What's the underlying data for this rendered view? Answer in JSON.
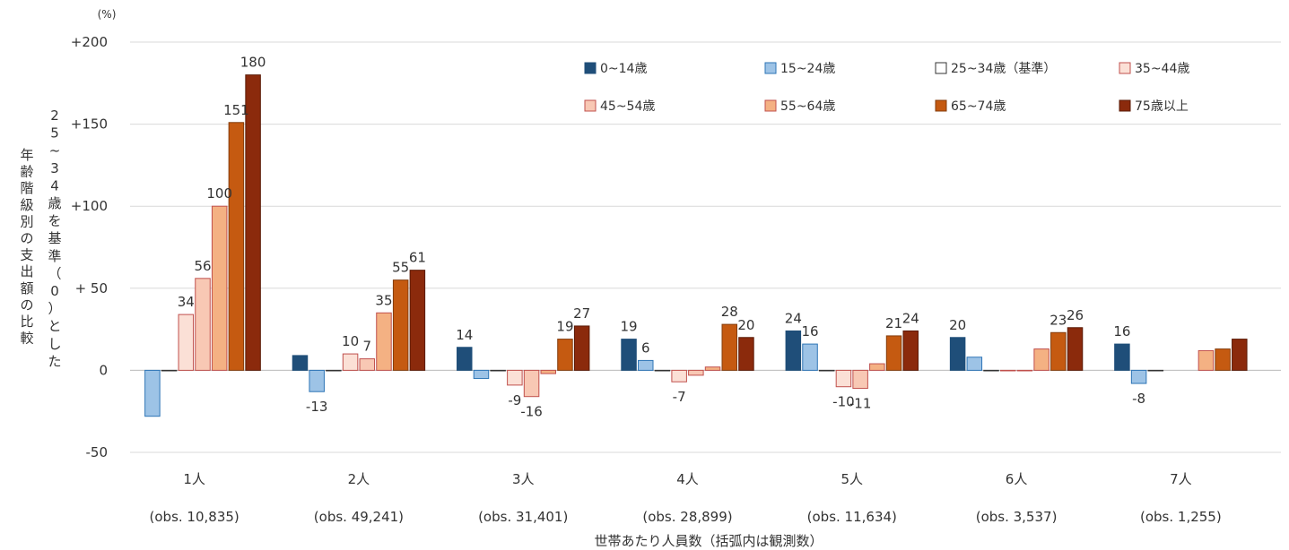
{
  "chart_data": {
    "type": "bar",
    "unit_label": "(%)",
    "ylabel": "年齢階級別の支出額の比較",
    "ylabel2": "25~34歳を基準（0）とした",
    "xlabel": "世帯あたり人員数（括弧内は観測数）",
    "ylim": [
      -50,
      200
    ],
    "yticks": [
      "+200",
      "+150",
      "+100",
      "+ 50",
      "0",
      "-50"
    ],
    "ytick_values": [
      200,
      150,
      100,
      50,
      0,
      -50
    ],
    "grid": true,
    "legend_position": "top-right",
    "categories": [
      "1人",
      "2人",
      "3人",
      "4人",
      "5人",
      "6人",
      "7人"
    ],
    "category_obs": [
      "(obs. 10,835)",
      "(obs. 49,241)",
      "(obs. 31,401)",
      "(obs. 28,899)",
      "(obs. 11,634)",
      "(obs. 3,537)",
      "(obs. 1,255)"
    ],
    "series": [
      {
        "name": "0~14歳",
        "color": "#1f4e79",
        "stroke": "#1f4e79",
        "values": [
          null,
          9,
          14,
          19,
          24,
          20,
          16
        ]
      },
      {
        "name": "15~24歳",
        "color": "#9dc3e6",
        "stroke": "#2e75b6",
        "values": [
          -28,
          -13,
          -5,
          6,
          16,
          8,
          -8
        ]
      },
      {
        "name": "25~34歳（基準）",
        "color": "#ffffff",
        "stroke": "#333333",
        "values": [
          0,
          0,
          0,
          0,
          0,
          0,
          0
        ]
      },
      {
        "name": "35~44歳",
        "color": "#fbe0d6",
        "stroke": "#c0504d",
        "values": [
          34,
          10,
          -9,
          -7,
          -10,
          0,
          null
        ]
      },
      {
        "name": "45~54歳",
        "color": "#f8c8b4",
        "stroke": "#c0504d",
        "values": [
          56,
          7,
          -16,
          -3,
          -11,
          0,
          null
        ]
      },
      {
        "name": "55~64歳",
        "color": "#f4b183",
        "stroke": "#c0504d",
        "values": [
          100,
          35,
          -2,
          2,
          4,
          13,
          12
        ]
      },
      {
        "name": "65~74歳",
        "color": "#c55a11",
        "stroke": "#843c0c",
        "values": [
          151,
          55,
          19,
          28,
          21,
          23,
          13
        ]
      },
      {
        "name": "75歳以上",
        "color": "#8b2a0c",
        "stroke": "#5a1a06",
        "values": [
          180,
          61,
          27,
          20,
          24,
          26,
          19
        ]
      }
    ],
    "data_labels": [
      {
        "cat": 0,
        "series": 3,
        "text": "34",
        "pos": "top"
      },
      {
        "cat": 0,
        "series": 4,
        "text": "56",
        "pos": "top"
      },
      {
        "cat": 0,
        "series": 5,
        "text": "100",
        "pos": "top"
      },
      {
        "cat": 0,
        "series": 6,
        "text": "151",
        "pos": "top"
      },
      {
        "cat": 0,
        "series": 7,
        "text": "180",
        "pos": "top"
      },
      {
        "cat": 1,
        "series": 1,
        "text": "-13",
        "pos": "bottom"
      },
      {
        "cat": 1,
        "series": 3,
        "text": "10",
        "pos": "top"
      },
      {
        "cat": 1,
        "series": 4,
        "text": "7",
        "pos": "top"
      },
      {
        "cat": 1,
        "series": 5,
        "text": "35",
        "pos": "top"
      },
      {
        "cat": 1,
        "series": 6,
        "text": "55",
        "pos": "top"
      },
      {
        "cat": 1,
        "series": 7,
        "text": "61",
        "pos": "top"
      },
      {
        "cat": 2,
        "series": 0,
        "text": "14",
        "pos": "top"
      },
      {
        "cat": 2,
        "series": 3,
        "text": "-9",
        "pos": "bottom"
      },
      {
        "cat": 2,
        "series": 4,
        "text": "-16",
        "pos": "bottom"
      },
      {
        "cat": 2,
        "series": 6,
        "text": "19",
        "pos": "top"
      },
      {
        "cat": 2,
        "series": 7,
        "text": "27",
        "pos": "top"
      },
      {
        "cat": 3,
        "series": 0,
        "text": "19",
        "pos": "top"
      },
      {
        "cat": 3,
        "series": 1,
        "text": "6",
        "pos": "top"
      },
      {
        "cat": 3,
        "series": 3,
        "text": "-7",
        "pos": "bottom"
      },
      {
        "cat": 3,
        "series": 6,
        "text": "28",
        "pos": "top"
      },
      {
        "cat": 3,
        "series": 7,
        "text": "20",
        "pos": "top"
      },
      {
        "cat": 4,
        "series": 0,
        "text": "24",
        "pos": "top"
      },
      {
        "cat": 4,
        "series": 1,
        "text": "16",
        "pos": "top"
      },
      {
        "cat": 4,
        "series": 3,
        "text": "-10",
        "pos": "bottom"
      },
      {
        "cat": 4,
        "series": 4,
        "text": "-11",
        "pos": "bottom"
      },
      {
        "cat": 4,
        "series": 6,
        "text": "21",
        "pos": "top"
      },
      {
        "cat": 4,
        "series": 7,
        "text": "24",
        "pos": "top"
      },
      {
        "cat": 5,
        "series": 0,
        "text": "20",
        "pos": "top"
      },
      {
        "cat": 5,
        "series": 6,
        "text": "23",
        "pos": "top"
      },
      {
        "cat": 5,
        "series": 7,
        "text": "26",
        "pos": "top"
      },
      {
        "cat": 6,
        "series": 0,
        "text": "16",
        "pos": "top"
      },
      {
        "cat": 6,
        "series": 1,
        "text": "-8",
        "pos": "bottom"
      }
    ]
  }
}
